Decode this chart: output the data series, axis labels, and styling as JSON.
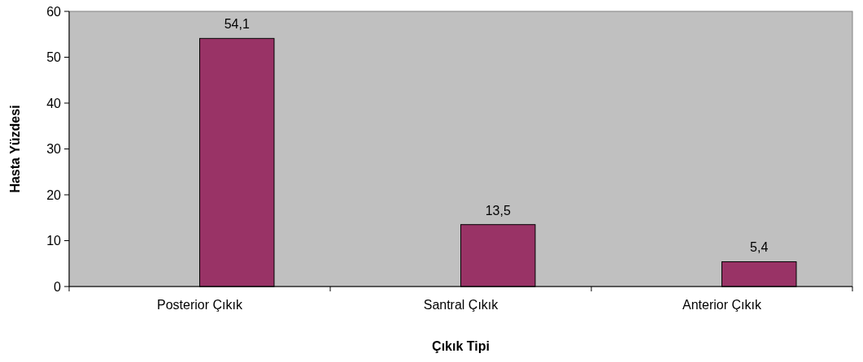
{
  "chart_data": {
    "type": "bar",
    "xlabel": "Çıkık Tipi",
    "ylabel": "Hasta Yüzdesi",
    "categories": [
      "Posterior Çıkık",
      "Santral Çıkık",
      "Anterior Çıkık"
    ],
    "values": [
      54.1,
      13.5,
      5.4
    ],
    "color": "#993366",
    "value_labels": [
      "54,1",
      "13,5",
      "5,4"
    ],
    "ylim": [
      0,
      60
    ],
    "yticks": [
      0,
      10,
      20,
      30,
      40,
      50,
      60
    ],
    "grid": false
  }
}
